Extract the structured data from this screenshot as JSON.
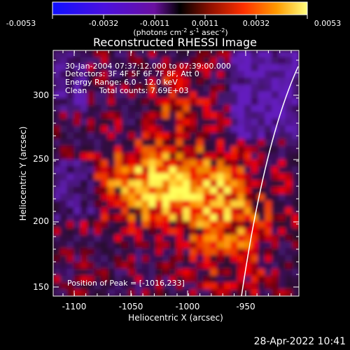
{
  "colorbar": {
    "ticks": [
      "-0.0053",
      "-0.0032",
      "-0.0011",
      "0.0011",
      "0.0032",
      "0.0053"
    ],
    "units_main": "(photons cm",
    "units_exp1": "-2",
    "units_mid": " s",
    "units_exp2": "-1",
    "units_end": " asec",
    "units_exp3": "-2",
    "units_close": ")"
  },
  "plot": {
    "title": "Reconstructed RHESSI Image",
    "info_lines": [
      "30-Jan-2004 07:37:12.000 to 07:39:00.000",
      "Detectors: 3F 4F 5F 6F 7F 8F, Att 0",
      "Energy Range: 6.0 - 12.0 keV",
      "Clean     Total counts: 7.69E+03"
    ],
    "peak_label": "Position of Peak = [-1016,233]",
    "xlabel": "Heliocentric X (arcsec)",
    "ylabel": "Heliocentric Y (arcsec)",
    "x_ticks": [
      "-1100",
      "-1050",
      "-1000",
      "-950"
    ],
    "y_ticks": [
      "150",
      "200",
      "250",
      "300"
    ]
  },
  "footer": {
    "timestamp": "28-Apr-2022 10:41"
  },
  "colors": {
    "background": "#000000",
    "text": "#ffffff"
  }
}
